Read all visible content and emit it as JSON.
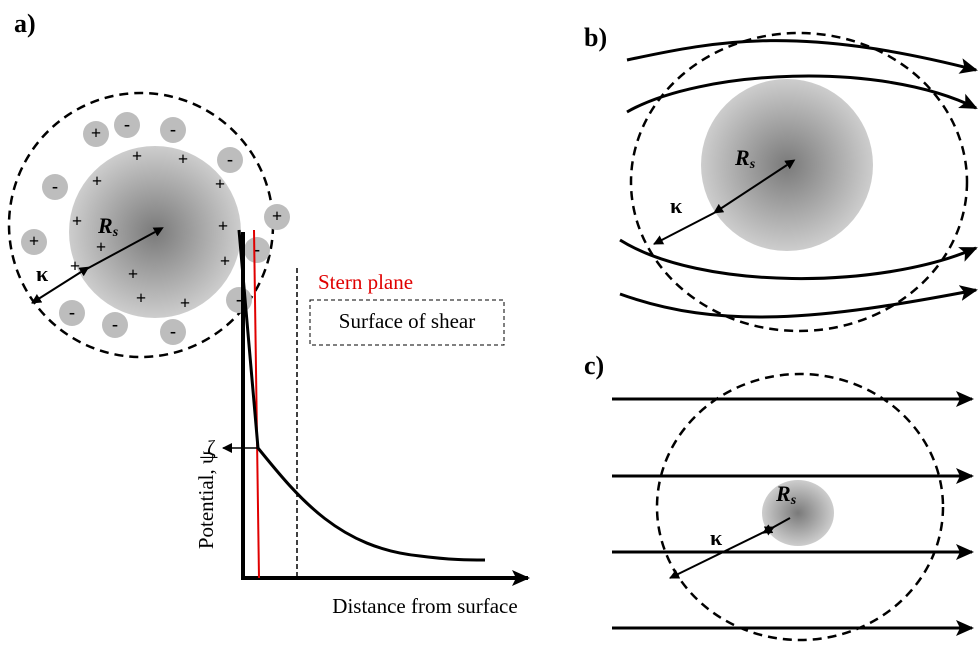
{
  "panel_a": {
    "label": "a)",
    "radius_symbol": "R",
    "radius_subscript": "s",
    "kappa": "κ",
    "signs": {
      "positive": "+",
      "negative": "-"
    },
    "stern_plane": "Stern plane",
    "surface_of_shear": "Surface of shear",
    "zeta": "ζ",
    "y_axis_label": "Potential, ψ",
    "x_axis_label": "Distance from surface"
  },
  "panel_b": {
    "label": "b)",
    "radius_symbol": "R",
    "radius_subscript": "s",
    "kappa": "κ"
  },
  "panel_c": {
    "label": "c)",
    "radius_symbol": "R",
    "radius_subscript": "s",
    "kappa": "κ"
  }
}
